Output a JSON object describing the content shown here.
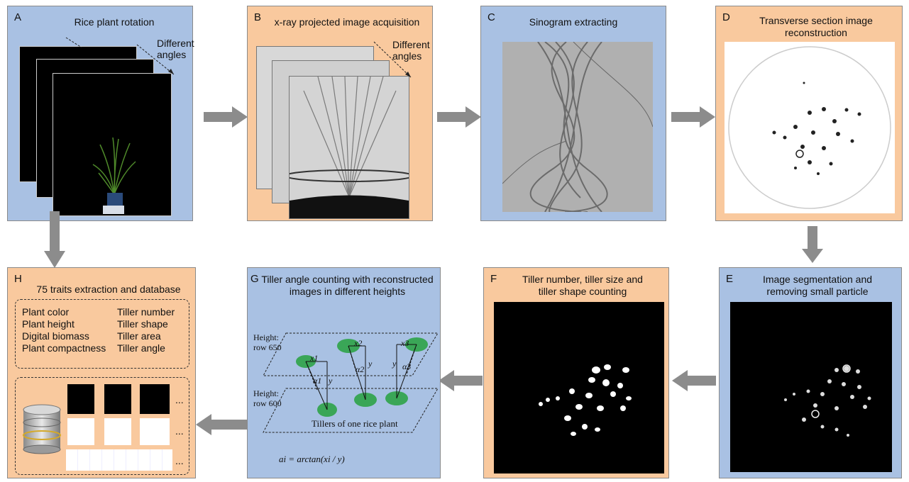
{
  "panels": {
    "a": {
      "letter": "A",
      "title": "Rice plant rotation",
      "note": "Different angles"
    },
    "b": {
      "letter": "B",
      "title": "x-ray projected image acquisition",
      "note": "Different angles"
    },
    "c": {
      "letter": "C",
      "title": "Sinogram extracting"
    },
    "d": {
      "letter": "D",
      "title1": "Transverse section image",
      "title2": "reconstruction"
    },
    "e": {
      "letter": "E",
      "title1": "Image segmentation and",
      "title2": "removing small particle"
    },
    "f": {
      "letter": "F",
      "title1": "Tiller number, tiller size and",
      "title2": "tiller shape counting"
    },
    "g": {
      "letter": "G",
      "title1": "Tiller angle counting with reconstructed",
      "title2": "images in different heights",
      "height1a": "Height:",
      "height1b": "row 650",
      "height2a": "Height:",
      "height2b": "row 600",
      "caption": "Tillers of one rice plant",
      "x1": "x1",
      "x2": "x2",
      "x3": "x3",
      "a1": "α1",
      "a2": "α2",
      "a3": "α3",
      "y1": "y",
      "y2": "y",
      "y3": "y",
      "formula": "ai = arctan(xi / y)"
    },
    "h": {
      "letter": "H",
      "title": "75 traits extraction and database",
      "traits_left": [
        "Plant color",
        "Plant height",
        "Digital biomass",
        "Plant compactness"
      ],
      "traits_right": [
        "Tiller number",
        "Tiller shape",
        "Tiller area",
        "Tiller angle"
      ],
      "ellipsis": "..."
    }
  },
  "colors": {
    "blue_panel": "#a9c1e3",
    "orange_panel": "#f9c99e",
    "arrow": "#8c8c8c",
    "tiller_green": "#3aa657"
  }
}
